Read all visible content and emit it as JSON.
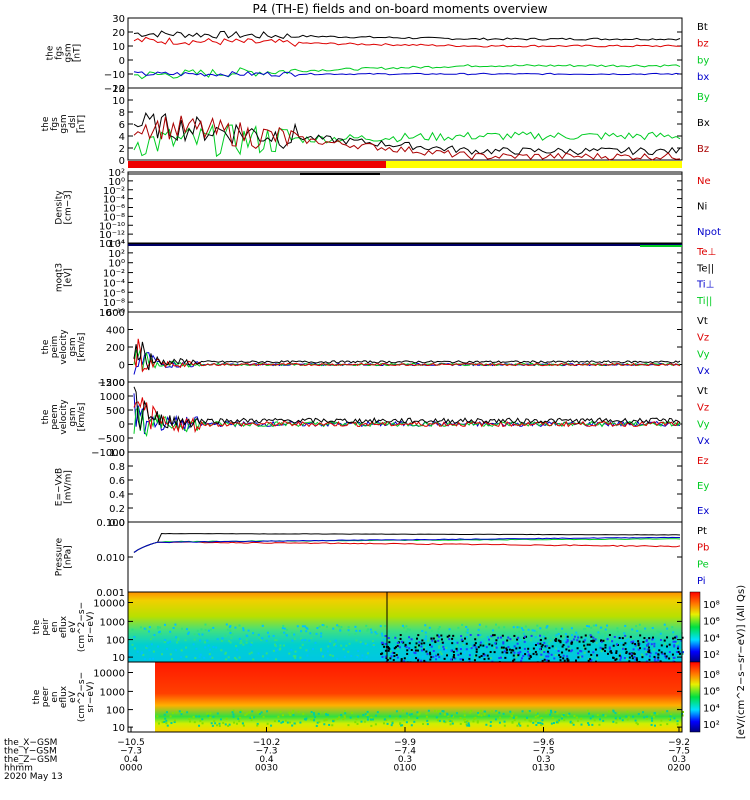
{
  "title": "P4 (TH-E) fields and on-board moments overview",
  "colors": {
    "black": "#000000",
    "red": "#dd0000",
    "green": "#00cc22",
    "blue": "#0000cc",
    "yellow": "#ffff00",
    "magenta": "#aa0000"
  },
  "chart_data": [
    {
      "type": "line",
      "ylabel": [
        "the",
        "fgs",
        "gsm",
        "[nT]"
      ],
      "yticks": [
        "30",
        "20",
        "10",
        "0",
        "−10",
        "−20"
      ],
      "ylim": [
        -20,
        30
      ],
      "series": [
        {
          "name": "Bt",
          "color": "black",
          "start": 19,
          "end": 15,
          "noise": 1.2
        },
        {
          "name": "bz",
          "color": "red",
          "start": 14,
          "end": 10,
          "noise": 1.2
        },
        {
          "name": "by",
          "color": "green",
          "start": -11,
          "end": -4,
          "noise": 1.5
        },
        {
          "name": "bx",
          "color": "blue",
          "start": -10,
          "end": -10,
          "noise": 0.8
        }
      ]
    },
    {
      "type": "line",
      "ylabel": [
        "the",
        "fgs",
        "gsm",
        "_dsl",
        "[nT]"
      ],
      "yticks": [
        "12",
        "10",
        "8",
        "6",
        "4",
        "2",
        "0"
      ],
      "ylim": [
        0,
        12
      ],
      "series": [
        {
          "name": "By",
          "color": "green",
          "start": 3,
          "end": 4,
          "noise": 1.2
        },
        {
          "name": "Bx",
          "color": "black",
          "start": 6,
          "end": 1.5,
          "noise": 1.0
        },
        {
          "name": "Bz",
          "color": "magenta",
          "start": 6,
          "end": 0.6,
          "noise": 1.0
        }
      ]
    },
    {
      "type": "line",
      "ylabel": [
        "Density",
        "[cm−3]"
      ],
      "yticks": [
        "10²",
        "10⁰",
        "10⁻²",
        "10⁻⁴",
        "10⁻⁶",
        "10⁻⁸",
        "10⁻¹⁰",
        "10⁻¹²",
        "10⁻¹⁴"
      ],
      "scale": "log",
      "series": [
        {
          "name": "Ne",
          "color": "red"
        },
        {
          "name": "Ni",
          "color": "black"
        },
        {
          "name": "Npot",
          "color": "blue"
        }
      ]
    },
    {
      "type": "line",
      "ylabel": [
        "moqt3",
        "[eV]"
      ],
      "yticks": [
        "10⁴",
        "10²",
        "10⁰",
        "10⁻²",
        "10⁻⁴",
        "10⁻⁶",
        "10⁻⁸",
        "10⁻¹⁰"
      ],
      "scale": "log",
      "series": [
        {
          "name": "Te⊥",
          "color": "red"
        },
        {
          "name": "Te||",
          "color": "black"
        },
        {
          "name": "Ti⊥",
          "color": "blue"
        },
        {
          "name": "Ti||",
          "color": "green"
        }
      ]
    },
    {
      "type": "line",
      "ylabel": [
        "the",
        "peim",
        "velocity",
        "gsm",
        "[km/s]"
      ],
      "yticks": [
        "600",
        "400",
        "200",
        "0",
        "−200"
      ],
      "ylim": [
        -200,
        600
      ],
      "series": [
        {
          "name": "Vt",
          "color": "black"
        },
        {
          "name": "Vz",
          "color": "red"
        },
        {
          "name": "Vy",
          "color": "green"
        },
        {
          "name": "Vx",
          "color": "blue"
        }
      ]
    },
    {
      "type": "line",
      "ylabel": [
        "the",
        "peem",
        "velocity",
        "gsm",
        "[km/s]"
      ],
      "yticks": [
        "1500",
        "1000",
        "500",
        "0",
        "−500",
        "−1000"
      ],
      "ylim": [
        -1000,
        1500
      ],
      "series": [
        {
          "name": "Vt",
          "color": "black"
        },
        {
          "name": "Vz",
          "color": "red"
        },
        {
          "name": "Vy",
          "color": "green"
        },
        {
          "name": "Vx",
          "color": "blue"
        }
      ]
    },
    {
      "type": "line",
      "ylabel": [
        "E=−VxB",
        "[mV/m]"
      ],
      "yticks": [
        "1.0",
        "0.8",
        "0.6",
        "0.4",
        "0.2",
        "0.0"
      ],
      "ylim": [
        0,
        1
      ],
      "series": [
        {
          "name": "Ez",
          "color": "red"
        },
        {
          "name": "Ey",
          "color": "green"
        },
        {
          "name": "Ex",
          "color": "blue"
        }
      ]
    },
    {
      "type": "line",
      "ylabel": [
        "Pressure",
        "[nPa]"
      ],
      "yticks": [
        "0.100",
        "0.010",
        "0.001"
      ],
      "scale": "log",
      "series": [
        {
          "name": "Pt",
          "color": "black"
        },
        {
          "name": "Pb",
          "color": "red"
        },
        {
          "name": "Pe",
          "color": "green"
        },
        {
          "name": "Pi",
          "color": "blue"
        }
      ]
    },
    {
      "type": "heatmap",
      "ylabel": [
        "the",
        "peir",
        "en",
        "eflux",
        "eV",
        "(cm^2−s−",
        "sr−eV)"
      ],
      "yticks": [
        "10000",
        "1000",
        "100",
        "10"
      ],
      "colorbar": {
        "ticks": [
          "10⁸",
          "10⁶",
          "10⁴",
          "10²"
        ],
        "label": "[eV/(cm^2−s−sr−eV)] (All Qs)"
      }
    },
    {
      "type": "heatmap",
      "ylabel": [
        "the",
        "peer",
        "en",
        "eflux",
        "eV",
        "(cm^2−s−",
        "sr−eV)"
      ],
      "yticks": [
        "10000",
        "1000",
        "100",
        "10"
      ],
      "colorbar": {
        "ticks": [
          "10⁸",
          "10⁶",
          "10⁴",
          "10²"
        ]
      }
    }
  ],
  "xaxis": {
    "rows": [
      {
        "label": "the_X−GSM",
        "values": [
          "−10.5",
          "−10.2",
          "−9.9",
          "−9.6",
          "−9.2"
        ]
      },
      {
        "label": "the_Y−GSM",
        "values": [
          "−7.3",
          "−7.3",
          "−7.4",
          "−7.5",
          "−7.5"
        ]
      },
      {
        "label": "the_Z−GSM",
        "values": [
          "0.4",
          "0.4",
          "0.3",
          "0.3",
          "0.3"
        ]
      },
      {
        "label": "hhmm",
        "values": [
          "0000",
          "0030",
          "0100",
          "0130",
          "0200"
        ]
      }
    ],
    "date": "2020 May 13"
  }
}
